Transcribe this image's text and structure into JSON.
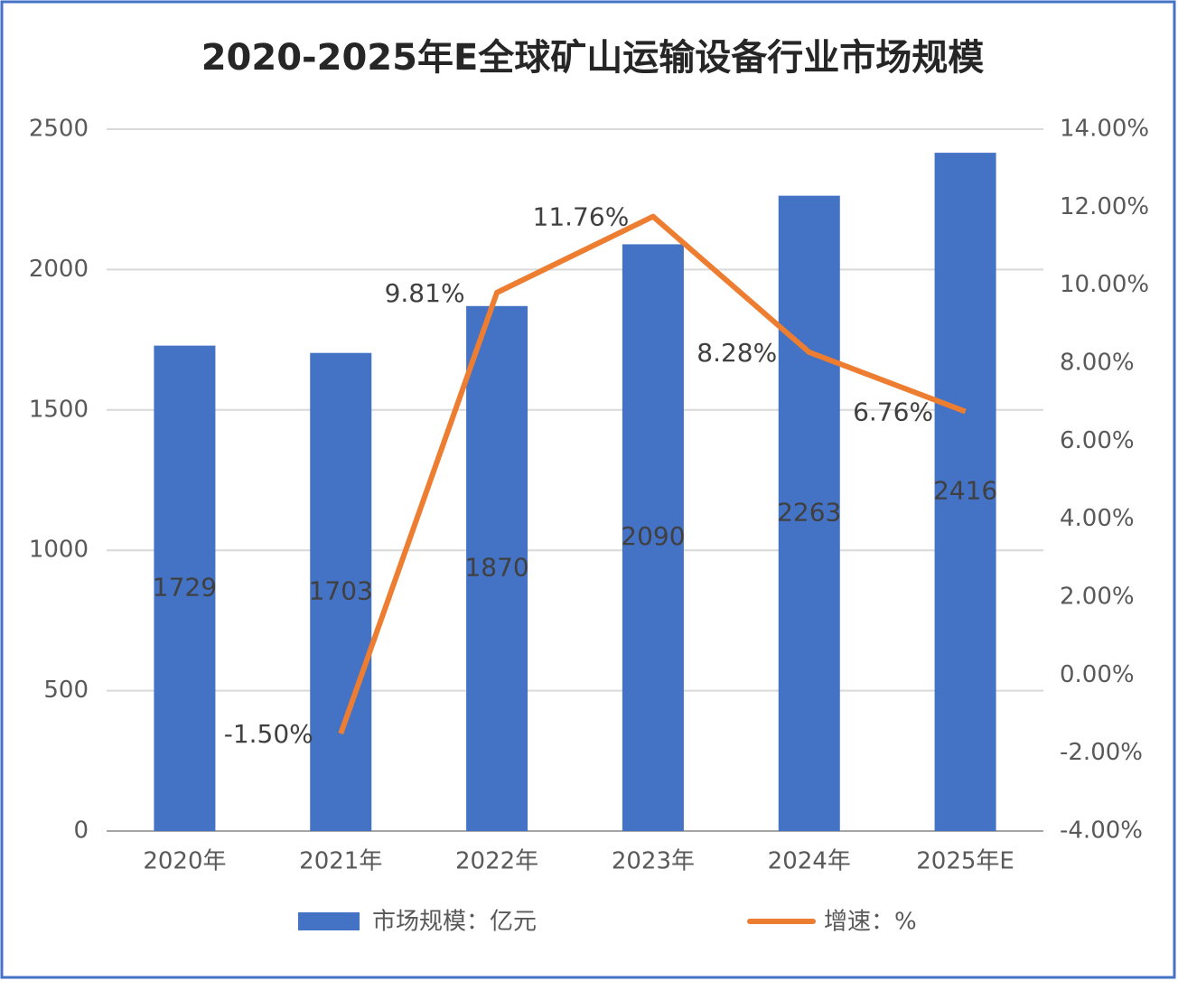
{
  "chart_data": {
    "type": "bar",
    "title": "2020-2025年E全球矿山运输设备行业市场规模",
    "categories": [
      "2020年",
      "2021年",
      "2022年",
      "2023年",
      "2024年",
      "2025年E"
    ],
    "series": [
      {
        "name": "市场规模：亿元",
        "type": "bar",
        "color": "#4472c4",
        "values": [
          1729,
          1703,
          1870,
          2090,
          2263,
          2416
        ]
      },
      {
        "name": "增速：%",
        "type": "line",
        "axis": "y2",
        "color": "#ed7d31",
        "values": [
          null,
          -1.5,
          9.81,
          11.76,
          8.28,
          6.76
        ],
        "value_labels": [
          null,
          "-1.50%",
          "9.81%",
          "11.76%",
          "8.28%",
          "6.76%"
        ]
      }
    ],
    "ylim": [
      0,
      2500
    ],
    "yticks": [
      0,
      500,
      1000,
      1500,
      2000,
      2500
    ],
    "y2lim": [
      -4,
      14
    ],
    "y2ticks": [
      {
        "value": -4,
        "label": "-4.00%"
      },
      {
        "value": -2,
        "label": "-2.00%"
      },
      {
        "value": 0,
        "label": "0.00%"
      },
      {
        "value": 2,
        "label": "2.00%"
      },
      {
        "value": 4,
        "label": "4.00%"
      },
      {
        "value": 6,
        "label": "6.00%"
      },
      {
        "value": 8,
        "label": "8.00%"
      },
      {
        "value": 10,
        "label": "10.00%"
      },
      {
        "value": 12,
        "label": "12.00%"
      },
      {
        "value": 14,
        "label": "14.00%"
      }
    ],
    "grid": true,
    "legend": "bottom"
  }
}
